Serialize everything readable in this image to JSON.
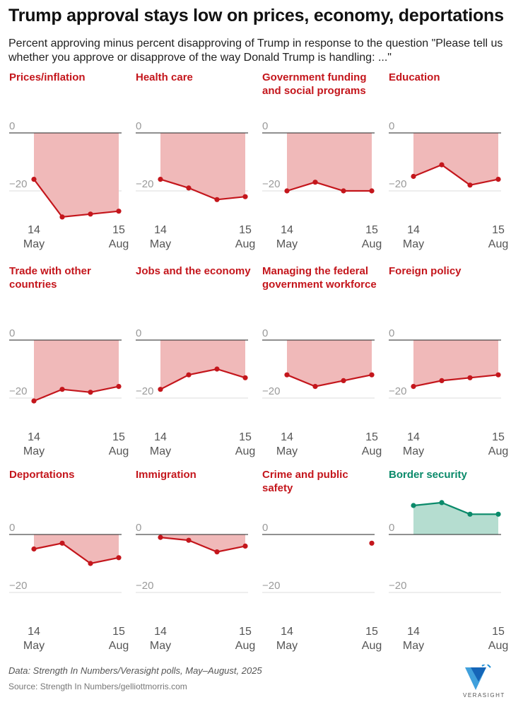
{
  "title": "Trump approval stays low on prices, economy, deportations",
  "subtitle": "Percent approving minus percent disapproving of Trump in response to the question \"Please tell us whether you approve or disapprove of the way Donald Trump is handling: ...\"",
  "note": "Data: Strength In Numbers/Verasight polls, May–August, 2025",
  "source": "Source: Strength In Numbers/gelliottmorris.com",
  "logo": "VERASIGHT",
  "chart_data": [
    {
      "type": "area",
      "title": "Prices/inflation",
      "categories": [
        "14 May",
        null,
        null,
        "15 Aug"
      ],
      "values": [
        -16,
        -29,
        -28,
        -27
      ],
      "color": "#c4161c",
      "fill": "#f0b9b9",
      "ylim": [
        -30,
        12
      ],
      "yticks": [
        0,
        {
          "value": -20,
          "label": "−20"
        }
      ]
    },
    {
      "type": "area",
      "title": "Health care",
      "categories": [
        "14 May",
        null,
        null,
        "15 Aug"
      ],
      "values": [
        -16,
        -19,
        -23,
        -22
      ],
      "color": "#c4161c",
      "fill": "#f0b9b9",
      "ylim": [
        -30,
        12
      ],
      "yticks": [
        0,
        {
          "value": -20,
          "label": "−20"
        }
      ]
    },
    {
      "type": "area",
      "title": "Government funding and social programs",
      "categories": [
        "14 May",
        null,
        null,
        "15 Aug"
      ],
      "values": [
        -20,
        -17,
        -20,
        -20
      ],
      "color": "#c4161c",
      "fill": "#f0b9b9",
      "ylim": [
        -30,
        12
      ],
      "yticks": [
        0,
        {
          "value": -20,
          "label": "−20"
        }
      ]
    },
    {
      "type": "area",
      "title": "Education",
      "categories": [
        "14 May",
        null,
        null,
        "15 Aug"
      ],
      "values": [
        -15,
        -11,
        -18,
        -16
      ],
      "color": "#c4161c",
      "fill": "#f0b9b9",
      "ylim": [
        -30,
        12
      ],
      "yticks": [
        0,
        {
          "value": -20,
          "label": "−20"
        }
      ]
    },
    {
      "type": "area",
      "title": "Trade with other countries",
      "categories": [
        "14 May",
        null,
        null,
        "15 Aug"
      ],
      "values": [
        -21,
        -17,
        -18,
        -16
      ],
      "color": "#c4161c",
      "fill": "#f0b9b9",
      "ylim": [
        -30,
        12
      ],
      "yticks": [
        0,
        {
          "value": -20,
          "label": "−20"
        }
      ]
    },
    {
      "type": "area",
      "title": "Jobs and the economy",
      "categories": [
        "14 May",
        null,
        null,
        "15 Aug"
      ],
      "values": [
        -17,
        -12,
        -10,
        -13
      ],
      "color": "#c4161c",
      "fill": "#f0b9b9",
      "ylim": [
        -30,
        12
      ],
      "yticks": [
        0,
        {
          "value": -20,
          "label": "−20"
        }
      ]
    },
    {
      "type": "area",
      "title": "Managing the federal government workforce",
      "categories": [
        "14 May",
        null,
        null,
        "15 Aug"
      ],
      "values": [
        -12,
        -16,
        -14,
        -12
      ],
      "color": "#c4161c",
      "fill": "#f0b9b9",
      "ylim": [
        -30,
        12
      ],
      "yticks": [
        0,
        {
          "value": -20,
          "label": "−20"
        }
      ]
    },
    {
      "type": "area",
      "title": "Foreign policy",
      "categories": [
        "14 May",
        null,
        null,
        "15 Aug"
      ],
      "values": [
        -16,
        -14,
        -13,
        -12
      ],
      "color": "#c4161c",
      "fill": "#f0b9b9",
      "ylim": [
        -30,
        12
      ],
      "yticks": [
        0,
        {
          "value": -20,
          "label": "−20"
        }
      ]
    },
    {
      "type": "area",
      "title": "Deportations",
      "categories": [
        "14 May",
        null,
        null,
        "15 Aug"
      ],
      "values": [
        -5,
        -3,
        -10,
        -8
      ],
      "color": "#c4161c",
      "fill": "#f0b9b9",
      "ylim": [
        -30,
        12
      ],
      "yticks": [
        0,
        {
          "value": -20,
          "label": "−20"
        }
      ]
    },
    {
      "type": "area",
      "title": "Immigration",
      "categories": [
        "14 May",
        null,
        null,
        "15 Aug"
      ],
      "values": [
        -1,
        -2,
        -6,
        -4
      ],
      "color": "#c4161c",
      "fill": "#f0b9b9",
      "ylim": [
        -30,
        12
      ],
      "yticks": [
        0,
        {
          "value": -20,
          "label": "−20"
        }
      ]
    },
    {
      "type": "area",
      "title": "Crime and public safety",
      "categories": [
        "14 May",
        null,
        null,
        "15 Aug"
      ],
      "values": [
        null,
        null,
        null,
        -3
      ],
      "color": "#c4161c",
      "fill": "#f0b9b9",
      "ylim": [
        -30,
        12
      ],
      "yticks": [
        0,
        {
          "value": -20,
          "label": "−20"
        }
      ]
    },
    {
      "type": "area",
      "title": "Border security",
      "categories": [
        "14 May",
        null,
        null,
        "15 Aug"
      ],
      "values": [
        10,
        11,
        7,
        7
      ],
      "color": "#0a8a6a",
      "fill": "#b5ddd0",
      "ylim": [
        -30,
        12
      ],
      "yticks": [
        0,
        {
          "value": -20,
          "label": "−20"
        }
      ]
    }
  ]
}
